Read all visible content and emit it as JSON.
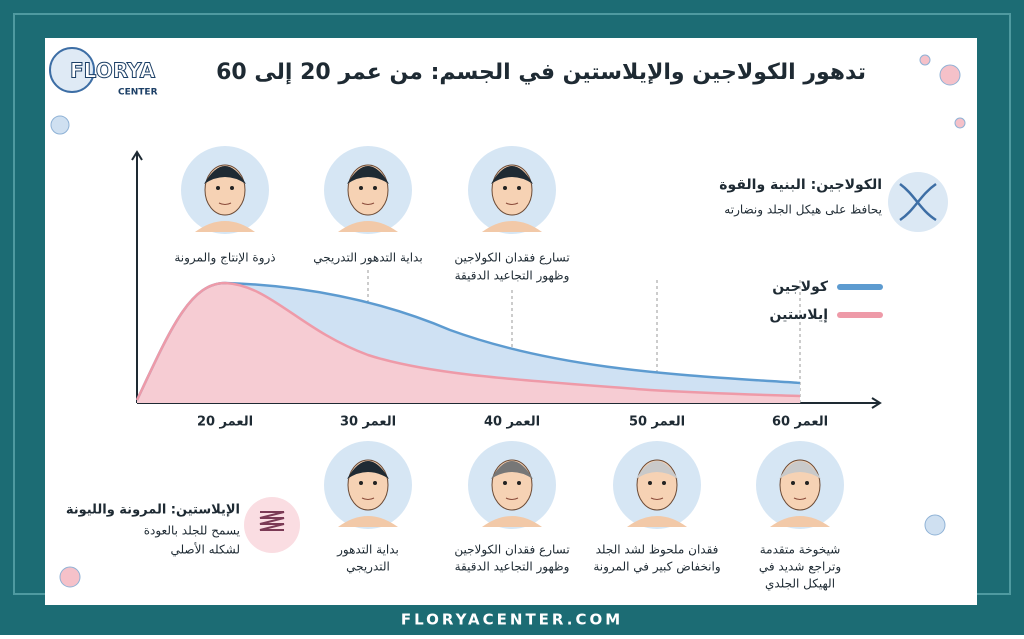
{
  "logo": {
    "name": "FLORYA",
    "sub": "CENTER"
  },
  "title": "تدهور الكولاجين والإيلاستين في الجسم: من عمر 20 إلى 60",
  "collagen_note": {
    "heading": "الكولاجين: البنية والقوة",
    "text": "يحافظ على هيكل الجلد ونضارته"
  },
  "elastin_note": {
    "heading": "الإيلاستين: المرونة والليونة",
    "lines": [
      "يسمح للجلد بالعودة",
      "لشكله الأصلي"
    ]
  },
  "legend": [
    "كولاجين",
    "إيلاستين"
  ],
  "ages": [
    "العمر 20",
    "العمر 30",
    "العمر 40",
    "العمر 50",
    "العمر 60"
  ],
  "top_captions": [
    [
      "ذروة الإنتاج والمرونة"
    ],
    [
      "بداية التدهور التدريجي"
    ],
    [
      "تسارع فقدان الكولاجين",
      "وظهور التجاعيد الدقيقة"
    ]
  ],
  "bottom_captions": [
    [
      "بداية التدهور",
      "التدريجي"
    ],
    [
      "تسارع فقدان الكولاجين",
      "وظهور التجاعيد الدقيقة"
    ],
    [
      "فقدان ملحوظ لشد الجلد",
      "وانخفاض كبير في المرونة"
    ],
    [
      "شيخوخة متقدمة",
      "وتراجع شديد في",
      "الهيكل الجلدي"
    ]
  ],
  "footer": "FLORYACENTER.COM"
}
